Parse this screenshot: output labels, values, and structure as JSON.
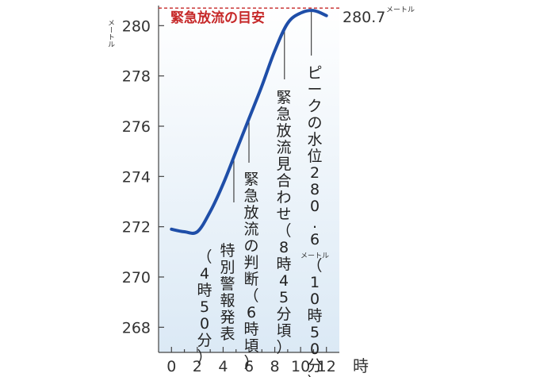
{
  "chart_data": {
    "type": "line",
    "title": "緊急放流の目安",
    "ylabel_unit": "メートル",
    "xlabel_unit": "時",
    "xlim": [
      -1,
      13
    ],
    "ylim": [
      267,
      280.8
    ],
    "xticks": [
      0,
      2,
      4,
      6,
      8,
      10,
      12
    ],
    "yticks": [
      268,
      270,
      272,
      274,
      276,
      278,
      280
    ],
    "threshold": {
      "value": 280.7,
      "label": "280.7",
      "unit": "メートル"
    },
    "series": [
      {
        "color": "#1f4ea8",
        "x": [
          0,
          1,
          2,
          3,
          4,
          5,
          6,
          7,
          8,
          9,
          10,
          11,
          12
        ],
        "y": [
          271.9,
          271.8,
          271.8,
          272.6,
          273.7,
          275.0,
          276.3,
          277.6,
          279.0,
          280.1,
          280.5,
          280.6,
          280.4
        ]
      }
    ],
    "annotations": [
      {
        "text": "特別警報発表",
        "sub": "（4時50分）",
        "x": 4.83
      },
      {
        "text": "緊急放流の判断",
        "sub": "（6時頃）",
        "x": 6.0
      },
      {
        "text": "緊急放流見合わせ",
        "sub": "（8時45分頃）",
        "x": 8.75
      },
      {
        "text": "ピークの水位",
        "value": "280.6",
        "unit": "メートル",
        "sub": "（10時50分）",
        "x": 10.83
      }
    ],
    "colors": {
      "line": "#1f4ea8",
      "threshold": "#c62828",
      "plot_bg_top": "#ffffff",
      "plot_bg_bottom": "#dbe9f5"
    }
  }
}
